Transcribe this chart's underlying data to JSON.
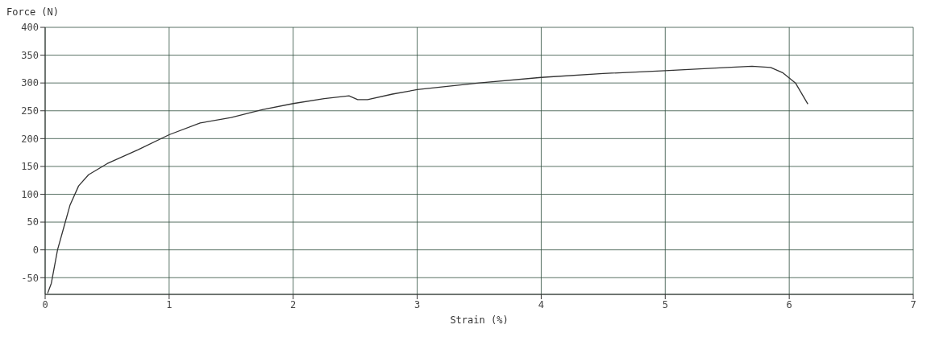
{
  "chart_data": {
    "type": "line",
    "xlabel": "Strain (%)",
    "ylabel": "Force (N)",
    "x": [
      0.02,
      0.05,
      0.1,
      0.15,
      0.2,
      0.27,
      0.35,
      0.5,
      0.75,
      1,
      1.25,
      1.5,
      1.75,
      2,
      2.25,
      2.45,
      2.52,
      2.6,
      2.8,
      3,
      3.5,
      4,
      4.5,
      5,
      5.5,
      5.7,
      5.85,
      5.95,
      6.05,
      6.15
    ],
    "series": [
      {
        "color": "#333333",
        "values": [
          -78,
          -60,
          0,
          40,
          80,
          115,
          135,
          155,
          180,
          207,
          228,
          238,
          252,
          263,
          272,
          277,
          270,
          270,
          280,
          288,
          300,
          310,
          317,
          322,
          328,
          330,
          328,
          318,
          300,
          262
        ]
      }
    ],
    "xlim": [
      0,
      7
    ],
    "xticks": [
      0,
      1,
      2,
      3,
      4,
      5,
      6,
      7
    ],
    "ylim": [
      -80,
      400
    ],
    "yticks": [
      -50,
      0,
      50,
      100,
      150,
      200,
      250,
      300,
      350,
      400
    ],
    "grid": true,
    "marker": "none",
    "line_style": "solid"
  }
}
